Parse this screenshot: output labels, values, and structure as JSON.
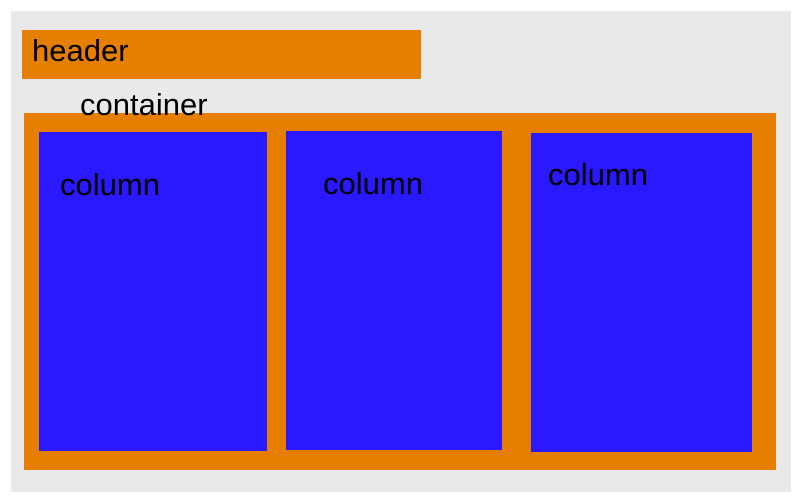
{
  "header": {
    "label": "header"
  },
  "container": {
    "label": "container"
  },
  "columns": [
    {
      "label": "column"
    },
    {
      "label": "column"
    },
    {
      "label": "column"
    }
  ],
  "colors": {
    "background": "#e9e9e9",
    "header_fill": "#e67e00",
    "container_fill": "#e67e00",
    "column_fill": "#2a18ff",
    "text": "#000000"
  }
}
